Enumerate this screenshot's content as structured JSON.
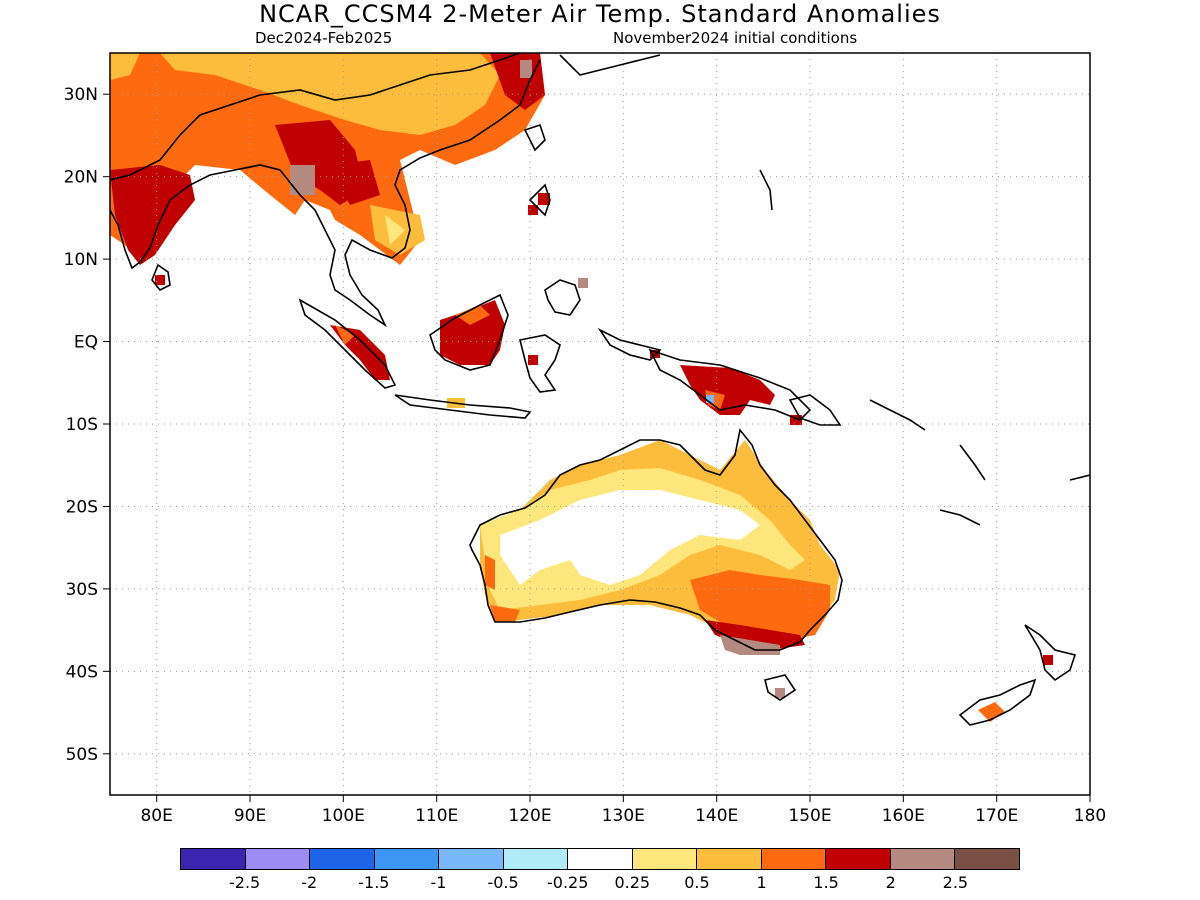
{
  "title": "NCAR_CCSM4 2-Meter Air Temp. Standard Anomalies",
  "subtitle_left": "Dec2024-Feb2025",
  "subtitle_right": "November2024 initial conditions",
  "map": {
    "lon_ticks": [
      "80E",
      "90E",
      "100E",
      "110E",
      "120E",
      "130E",
      "140E",
      "150E",
      "160E",
      "170E",
      "180"
    ],
    "lat_ticks": [
      "30N",
      "20N",
      "10N",
      "EQ",
      "10S",
      "20S",
      "30S",
      "40S",
      "50S"
    ],
    "lon_range": [
      75,
      180
    ],
    "lat_range": [
      -55,
      35
    ]
  },
  "colorbar": {
    "colors": [
      "#3a24b0",
      "#9c8cf4",
      "#1e64e6",
      "#3c96f4",
      "#78b8f8",
      "#b0ecf8",
      "#ffffff",
      "#fde67c",
      "#fdbd3c",
      "#fd6a10",
      "#c00000",
      "#b48a80",
      "#7b5044"
    ],
    "labels": [
      "-2.5",
      "-2",
      "-1.5",
      "-1",
      "-0.5",
      "-0.25",
      "0.25",
      "0.5",
      "1",
      "1.5",
      "2",
      "2.5"
    ]
  }
}
